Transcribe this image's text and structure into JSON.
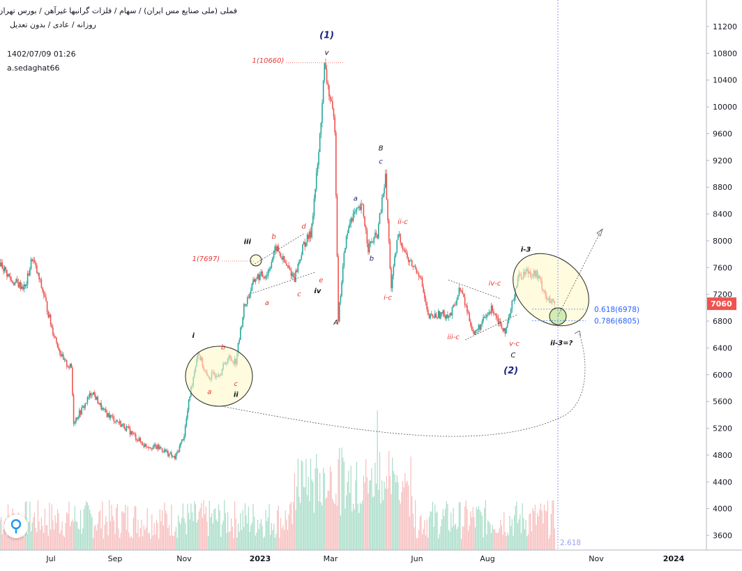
{
  "header": {
    "symbol_line": "فملی (ملی صنایع مس ایران) / سهام / فلزات گرانبها غیرآهن / بورس تهران",
    "info_line": "روزانه / عادی / بدون تعدیل",
    "timestamp": "1402/07/09 01:26",
    "author": "a.sedaghat66"
  },
  "colors": {
    "up": "#26a69a",
    "down": "#ef5350",
    "up_volume": "#a7dcc7",
    "down_volume": "#f7bcbc",
    "price_tag": "#ef5350",
    "highlight_fill": "#fff8c4",
    "target_green": "#a9e08a",
    "fib_blue": "#2962ff",
    "wave_red": "#e53935",
    "wave_blue": "#1a237e"
  },
  "chart_data": {
    "type": "candlestick",
    "title": "",
    "y_axis_ticks": [
      11200,
      10800,
      10400,
      10000,
      9600,
      9200,
      8800,
      8400,
      8000,
      7600,
      7200,
      6800,
      6400,
      6000,
      5600,
      5200,
      4800,
      4400,
      4000,
      3600
    ],
    "ylim": [
      3400,
      11600
    ],
    "x_axis_ticks": [
      "Jul",
      "Sep",
      "Nov",
      "2023",
      "Mar",
      "Jun",
      "Aug",
      "Nov",
      "2024"
    ],
    "last_price": "7060",
    "grid": false,
    "anchors": [
      {
        "day": 0,
        "price": 7680
      },
      {
        "day": 10,
        "price": 7400
      },
      {
        "day": 22,
        "price": 7300
      },
      {
        "day": 28,
        "price": 7750
      },
      {
        "day": 38,
        "price": 7200
      },
      {
        "day": 45,
        "price": 6700
      },
      {
        "day": 55,
        "price": 6200
      },
      {
        "day": 62,
        "price": 6100
      },
      {
        "day": 64,
        "price": 5300
      },
      {
        "day": 72,
        "price": 5500
      },
      {
        "day": 80,
        "price": 5750
      },
      {
        "day": 90,
        "price": 5450
      },
      {
        "day": 110,
        "price": 5200
      },
      {
        "day": 125,
        "price": 4950
      },
      {
        "day": 140,
        "price": 4900
      },
      {
        "day": 152,
        "price": 4750
      },
      {
        "day": 160,
        "price": 5100
      },
      {
        "day": 165,
        "price": 5700
      },
      {
        "day": 172,
        "price": 6350
      },
      {
        "day": 180,
        "price": 5950
      },
      {
        "day": 192,
        "price": 6050
      },
      {
        "day": 198,
        "price": 6250
      },
      {
        "day": 205,
        "price": 6200
      },
      {
        "day": 212,
        "price": 7000
      },
      {
        "day": 222,
        "price": 7450
      },
      {
        "day": 232,
        "price": 7500
      },
      {
        "day": 240,
        "price": 7900
      },
      {
        "day": 248,
        "price": 7650
      },
      {
        "day": 256,
        "price": 7450
      },
      {
        "day": 264,
        "price": 7950
      },
      {
        "day": 270,
        "price": 8100
      },
      {
        "day": 277,
        "price": 9300
      },
      {
        "day": 282,
        "price": 10600
      },
      {
        "day": 287,
        "price": 10100
      },
      {
        "day": 291,
        "price": 9700
      },
      {
        "day": 294,
        "price": 6850
      },
      {
        "day": 300,
        "price": 7950
      },
      {
        "day": 305,
        "price": 8350
      },
      {
        "day": 315,
        "price": 8500
      },
      {
        "day": 320,
        "price": 7900
      },
      {
        "day": 328,
        "price": 8100
      },
      {
        "day": 335,
        "price": 8950
      },
      {
        "day": 340,
        "price": 7300
      },
      {
        "day": 346,
        "price": 8100
      },
      {
        "day": 355,
        "price": 7700
      },
      {
        "day": 365,
        "price": 7500
      },
      {
        "day": 372,
        "price": 6850
      },
      {
        "day": 382,
        "price": 6900
      },
      {
        "day": 392,
        "price": 6900
      },
      {
        "day": 400,
        "price": 7300
      },
      {
        "day": 412,
        "price": 6600
      },
      {
        "day": 420,
        "price": 6800
      },
      {
        "day": 428,
        "price": 7000
      },
      {
        "day": 435,
        "price": 6750
      },
      {
        "day": 440,
        "price": 6650
      },
      {
        "day": 450,
        "price": 7450
      },
      {
        "day": 458,
        "price": 7550
      },
      {
        "day": 466,
        "price": 7500
      },
      {
        "day": 472,
        "price": 7300
      },
      {
        "day": 476,
        "price": 7100
      },
      {
        "day": 482,
        "price": 7060
      }
    ],
    "volume_spikes": [
      {
        "day": 328,
        "value": 1.0
      },
      {
        "day": 294,
        "value": 0.65
      },
      {
        "day": 330,
        "value": 0.7
      },
      {
        "day": 282,
        "value": 0.55
      },
      {
        "day": 287,
        "value": 0.6
      }
    ]
  },
  "annotations": {
    "wave_labels": [
      {
        "text": "(1)",
        "day": 284,
        "price": 11030,
        "color": "blue",
        "bold": true,
        "size": 13
      },
      {
        "text": "v",
        "day": 284,
        "price": 10780,
        "color": "black",
        "size": 10
      },
      {
        "text": "1(10660)",
        "day": 233,
        "price": 10660,
        "color": "red",
        "size": 10
      },
      {
        "text": "B",
        "day": 331,
        "price": 9350,
        "color": "black",
        "size": 10
      },
      {
        "text": "c",
        "day": 331,
        "price": 9150,
        "color": "blue",
        "size": 10
      },
      {
        "text": "a",
        "day": 309,
        "price": 8600,
        "color": "blue",
        "size": 10
      },
      {
        "text": "ii-c",
        "day": 350,
        "price": 8250,
        "color": "red",
        "size": 10
      },
      {
        "text": "iii",
        "day": 215,
        "price": 7950,
        "color": "black",
        "bold": true,
        "size": 10
      },
      {
        "text": "b",
        "day": 238,
        "price": 8030,
        "color": "red",
        "size": 10
      },
      {
        "text": "d",
        "day": 264,
        "price": 8180,
        "color": "red",
        "size": 10
      },
      {
        "text": "1(7697)",
        "day": 179,
        "price": 7697,
        "color": "red",
        "size": 10
      },
      {
        "text": "b",
        "day": 323,
        "price": 7700,
        "color": "blue",
        "size": 10
      },
      {
        "text": "e",
        "day": 279,
        "price": 7380,
        "color": "red",
        "size": 10
      },
      {
        "text": "iv",
        "day": 276,
        "price": 7220,
        "color": "black",
        "bold": true,
        "size": 10
      },
      {
        "text": "c",
        "day": 260,
        "price": 7170,
        "color": "red",
        "size": 10
      },
      {
        "text": "a",
        "day": 232,
        "price": 7040,
        "color": "red",
        "size": 10
      },
      {
        "text": "i-c",
        "day": 337,
        "price": 7120,
        "color": "red",
        "size": 10
      },
      {
        "text": "iv-c",
        "day": 430,
        "price": 7330,
        "color": "red",
        "size": 10
      },
      {
        "text": "i-3",
        "day": 457,
        "price": 7840,
        "color": "black",
        "bold": true,
        "size": 10
      },
      {
        "text": "A",
        "day": 292,
        "price": 6750,
        "color": "black",
        "size": 10
      },
      {
        "text": "iii-c",
        "day": 394,
        "price": 6530,
        "color": "red",
        "size": 10
      },
      {
        "text": "v-c",
        "day": 447,
        "price": 6430,
        "color": "red",
        "size": 10
      },
      {
        "text": "ii-3=?",
        "day": 488,
        "price": 6440,
        "color": "black",
        "bold": true,
        "size": 10
      },
      {
        "text": "i",
        "day": 168,
        "price": 6550,
        "color": "black",
        "bold": true,
        "size": 10
      },
      {
        "text": "b",
        "day": 194,
        "price": 6380,
        "color": "red",
        "size": 10
      },
      {
        "text": "C",
        "day": 446,
        "price": 6260,
        "color": "black",
        "size": 10
      },
      {
        "text": "(2)",
        "day": 444,
        "price": 6020,
        "color": "blue",
        "bold": true,
        "size": 13
      },
      {
        "text": "c",
        "day": 205,
        "price": 5830,
        "color": "red",
        "size": 10
      },
      {
        "text": "a",
        "day": 182,
        "price": 5710,
        "color": "red",
        "size": 10
      },
      {
        "text": "ii",
        "day": 205,
        "price": 5670,
        "color": "black",
        "bold": true,
        "size": 10
      }
    ],
    "fib_levels": [
      {
        "label": "0.618(6978)",
        "price": 6978
      },
      {
        "label": "0.786(6805)",
        "price": 6805
      }
    ],
    "bottom_fib_label": "2.618"
  }
}
